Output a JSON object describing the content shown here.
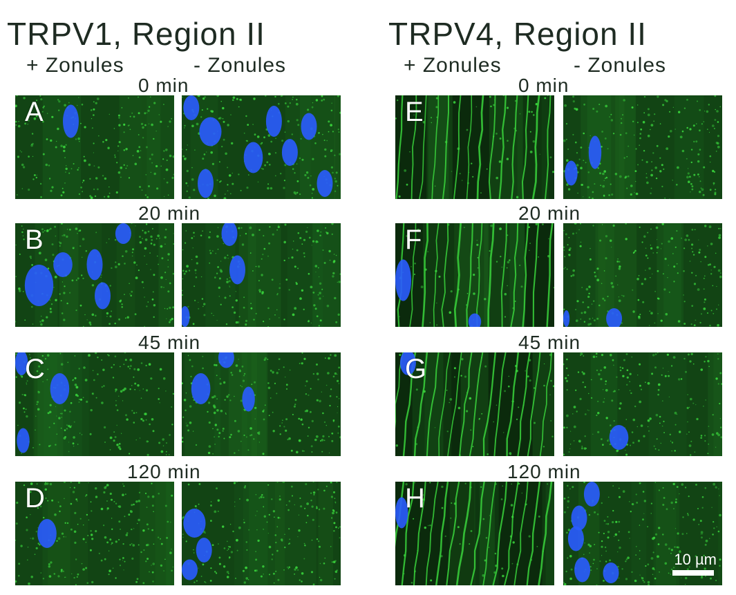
{
  "titles": {
    "left": "TRPV1, Region II",
    "right": "TRPV4, Region II"
  },
  "column_headers": {
    "plus": "+ Zonules",
    "minus": "- Zonules"
  },
  "timepoints": [
    "0",
    "20",
    "45",
    "120"
  ],
  "time_unit": "min",
  "panel_letters": {
    "left": [
      "A",
      "B",
      "C",
      "D"
    ],
    "right": [
      "E",
      "F",
      "G",
      "H"
    ]
  },
  "scale_bar": {
    "label": "10 µm"
  },
  "colors": {
    "background": "#0e3a10",
    "signal_green": "#39d43c",
    "nucleus_blue": "#2a5cff"
  }
}
